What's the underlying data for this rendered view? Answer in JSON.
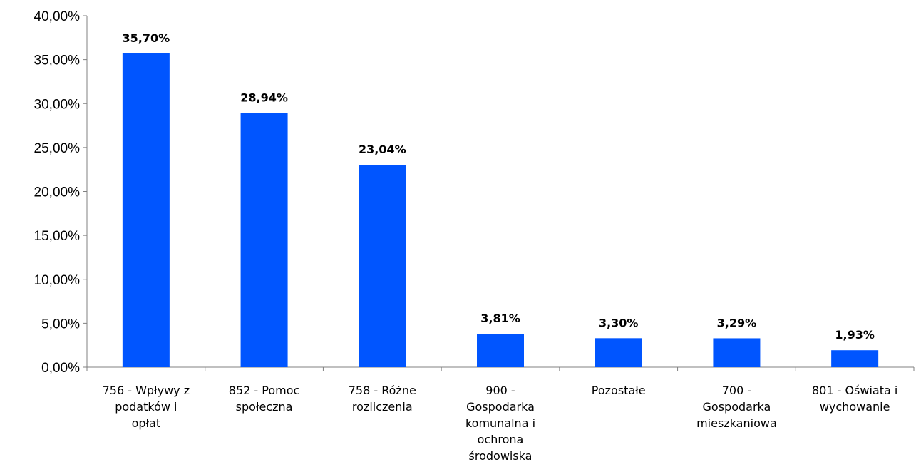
{
  "chart_data": {
    "type": "bar",
    "categories": [
      [
        "756 - Wpływy z",
        "podatków i",
        "opłat"
      ],
      [
        "852 - Pomoc",
        "społeczna"
      ],
      [
        "758 - Różne",
        "rozliczenia"
      ],
      [
        "900 -",
        "Gospodarka",
        "komunalna i",
        "ochrona",
        "środowiska"
      ],
      [
        "Pozostałe"
      ],
      [
        "700 -",
        "Gospodarka",
        "mieszkaniowa"
      ],
      [
        "801 - Oświata i",
        "wychowanie"
      ]
    ],
    "values": [
      35.7,
      28.94,
      23.04,
      3.81,
      3.3,
      3.29,
      1.93
    ],
    "data_labels": [
      "35,70%",
      "28,94%",
      "23,04%",
      "3,81%",
      "3,30%",
      "3,29%",
      "1,93%"
    ],
    "ylim": [
      0,
      40
    ],
    "yticks": [
      0,
      5,
      10,
      15,
      20,
      25,
      30,
      35,
      40
    ],
    "ytick_labels": [
      "0,00%",
      "5,00%",
      "10,00%",
      "15,00%",
      "20,00%",
      "25,00%",
      "30,00%",
      "35,00%",
      "40,00%"
    ],
    "bar_color": "#0055FF",
    "grid": false,
    "legend": "none"
  }
}
